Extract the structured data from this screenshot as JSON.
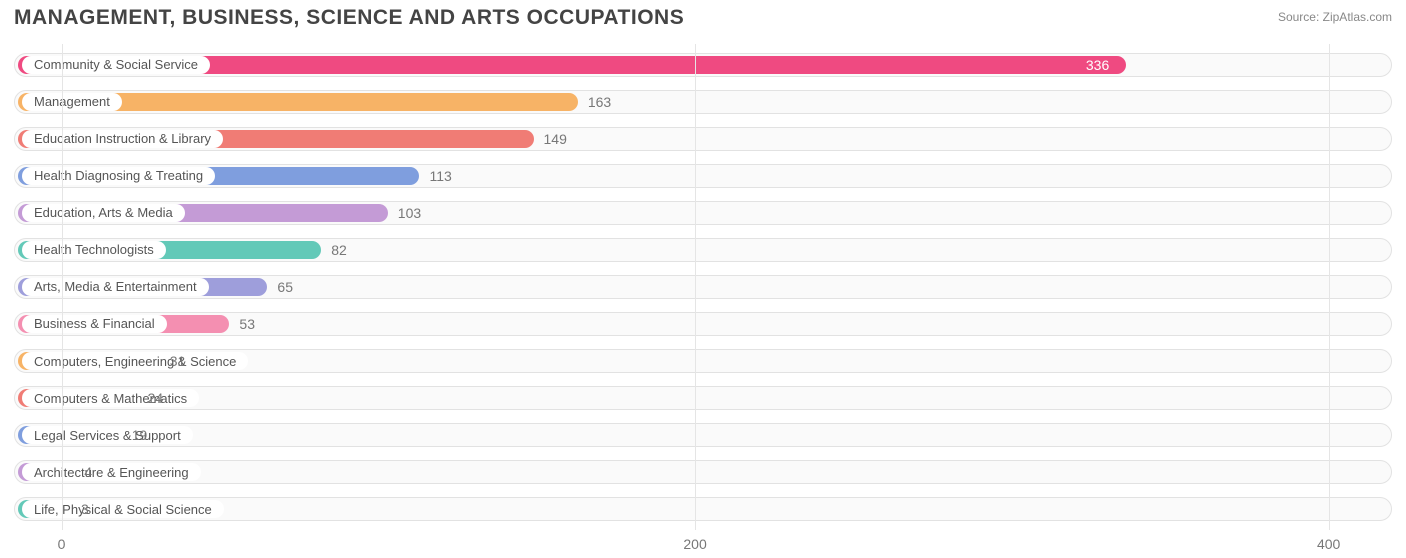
{
  "title": "MANAGEMENT, BUSINESS, SCIENCE AND ARTS OCCUPATIONS",
  "source_label": "Source:",
  "source_site": "ZipAtlas.com",
  "chart": {
    "type": "bar-horizontal",
    "background_color": "#ffffff",
    "track_border_color": "#e2e2e2",
    "track_bg_color": "#fafafa",
    "grid_color": "#e5e5e5",
    "title_color": "#444444",
    "title_fontsize": 21,
    "value_color": "#777777",
    "label_color": "#555555",
    "label_fontsize": 13,
    "value_fontsize": 14,
    "x_axis": {
      "min": -15,
      "max": 420,
      "ticks": [
        0,
        200,
        400
      ]
    },
    "bars": [
      {
        "label": "Community & Social Service",
        "value": 336,
        "color": "#ef4a81",
        "value_color": "#ffffff",
        "value_inside": true
      },
      {
        "label": "Management",
        "value": 163,
        "color": "#f7b366",
        "value_color": "#777777",
        "value_inside": false
      },
      {
        "label": "Education Instruction & Library",
        "value": 149,
        "color": "#f07c75",
        "value_color": "#777777",
        "value_inside": false
      },
      {
        "label": "Health Diagnosing & Treating",
        "value": 113,
        "color": "#7f9ede",
        "value_color": "#777777",
        "value_inside": false
      },
      {
        "label": "Education, Arts & Media",
        "value": 103,
        "color": "#c49bd6",
        "value_color": "#777777",
        "value_inside": false
      },
      {
        "label": "Health Technologists",
        "value": 82,
        "color": "#63c9b8",
        "value_color": "#777777",
        "value_inside": false
      },
      {
        "label": "Arts, Media & Entertainment",
        "value": 65,
        "color": "#9e9edb",
        "value_color": "#777777",
        "value_inside": false
      },
      {
        "label": "Business & Financial",
        "value": 53,
        "color": "#f48fb1",
        "value_color": "#777777",
        "value_inside": false
      },
      {
        "label": "Computers, Engineering & Science",
        "value": 31,
        "color": "#f7b366",
        "value_color": "#777777",
        "value_inside": false
      },
      {
        "label": "Computers & Mathematics",
        "value": 24,
        "color": "#f07c75",
        "value_color": "#777777",
        "value_inside": false
      },
      {
        "label": "Legal Services & Support",
        "value": 19,
        "color": "#7f9ede",
        "value_color": "#777777",
        "value_inside": false
      },
      {
        "label": "Architecture & Engineering",
        "value": 4,
        "color": "#c49bd6",
        "value_color": "#777777",
        "value_inside": false
      },
      {
        "label": "Life, Physical & Social Science",
        "value": 3,
        "color": "#63c9b8",
        "value_color": "#777777",
        "value_inside": false
      }
    ]
  }
}
